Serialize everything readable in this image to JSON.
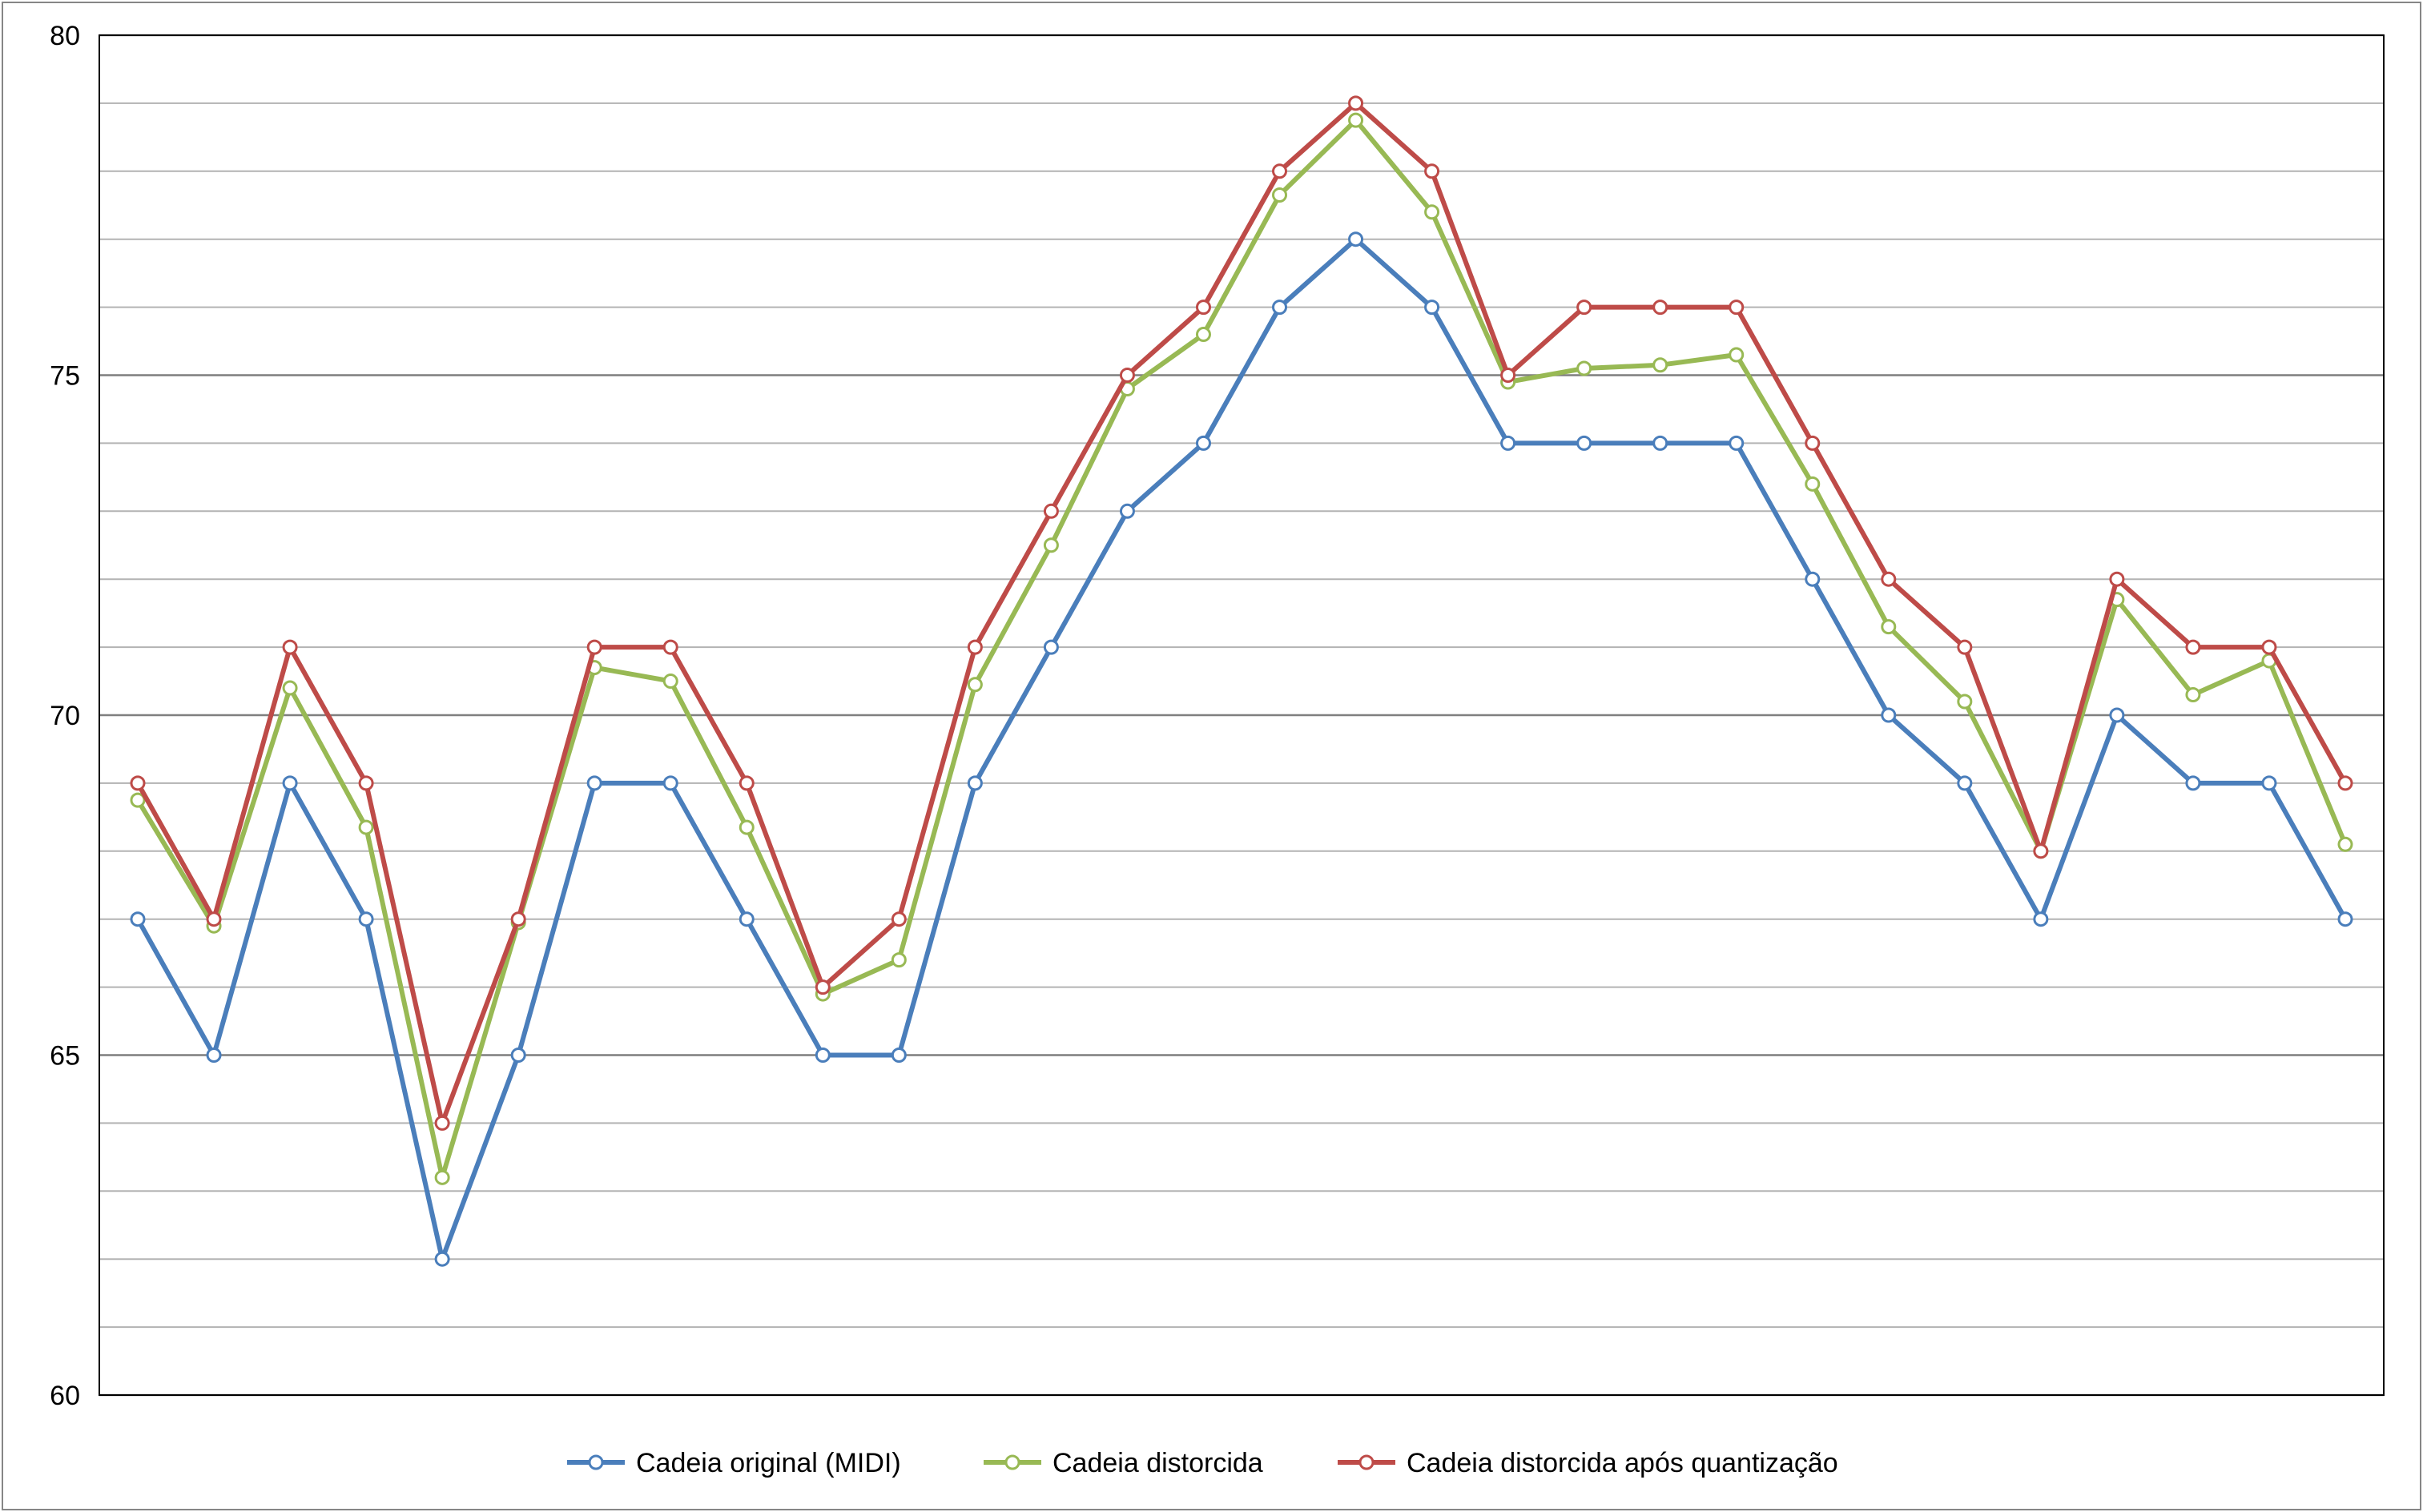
{
  "chart_data": {
    "type": "line",
    "title": "",
    "xlabel": "",
    "ylabel": "",
    "ylim": [
      60,
      80
    ],
    "y_major_ticks": [
      60,
      65,
      70,
      75,
      80
    ],
    "y_minor_step": 1,
    "y_labels": [
      "60",
      "65",
      "70",
      "75",
      "80"
    ],
    "grid": true,
    "legend_position": "bottom",
    "x": [
      1,
      2,
      3,
      4,
      5,
      6,
      7,
      8,
      9,
      10,
      11,
      12,
      13,
      14,
      15,
      16,
      17,
      18,
      19,
      20,
      21,
      22,
      23,
      24,
      25,
      26,
      27,
      28,
      29,
      30
    ],
    "series": [
      {
        "name": "Cadeia original (MIDI)",
        "color": "#4a7ebb",
        "values": [
          67,
          65,
          69,
          67,
          62,
          65,
          69,
          69,
          67,
          65,
          65,
          69,
          71,
          73,
          74,
          76,
          77,
          76,
          74,
          74,
          74,
          74,
          72,
          70,
          69,
          67,
          70,
          69,
          69,
          67
        ]
      },
      {
        "name": "Cadeia distorcida",
        "color": "#98b954",
        "values": [
          68.75,
          66.9,
          70.4,
          68.35,
          63.2,
          66.95,
          70.7,
          70.5,
          68.35,
          65.9,
          66.4,
          70.45,
          72.5,
          74.8,
          75.6,
          77.65,
          78.75,
          77.4,
          74.9,
          75.1,
          75.15,
          75.3,
          73.4,
          71.3,
          70.2,
          68.0,
          71.7,
          70.3,
          70.8,
          68.1
        ]
      },
      {
        "name": "Cadeia distorcida após quantização",
        "color": "#be4b48",
        "values": [
          69,
          67,
          71,
          69,
          64,
          67,
          71,
          71,
          69,
          66,
          67,
          71,
          73,
          75,
          76,
          78,
          79,
          78,
          75,
          76,
          76,
          76,
          74,
          72,
          71,
          68,
          72,
          71,
          71,
          69
        ]
      }
    ]
  }
}
